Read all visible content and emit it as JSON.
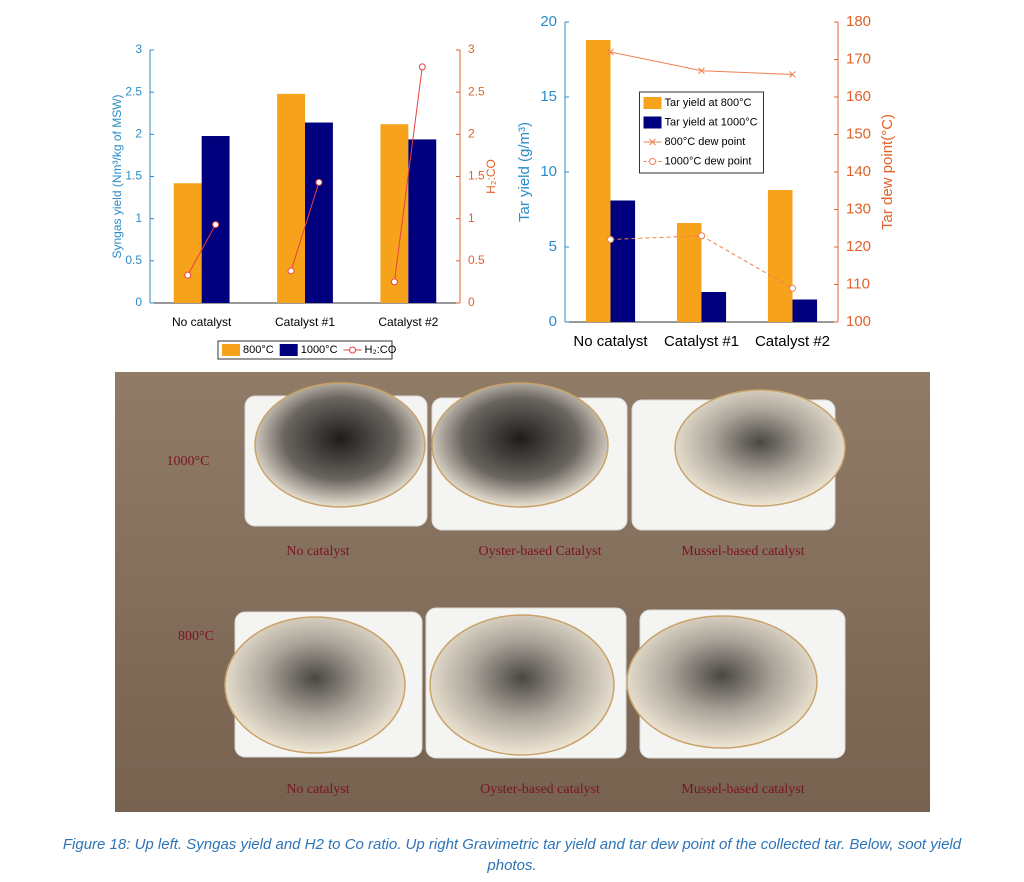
{
  "chart_data": [
    {
      "type": "bar",
      "ylabel": "Syngas yield (Nm³/kg of MSW)",
      "y2label": "H₂:CO",
      "categories": [
        "No catalyst",
        "Catalyst #1",
        "Catalyst #2"
      ],
      "series": [
        {
          "name": "800°C",
          "color": "#f7a21b",
          "values": [
            1.42,
            2.48,
            2.12
          ]
        },
        {
          "name": "1000°C",
          "color": "#00007f",
          "values": [
            1.98,
            2.14,
            1.94
          ]
        },
        {
          "name": "H₂:CO",
          "color": "#e8413c",
          "axis": "y2",
          "type": "line",
          "marker": "o",
          "linestyle": "solid",
          "values": [
            [
              0.33,
              0.93
            ],
            [
              0.38,
              1.43
            ],
            [
              0.25,
              2.8
            ]
          ]
        }
      ],
      "ylim": [
        0,
        3
      ],
      "yticks": [
        0,
        0.5,
        1,
        1.5,
        2,
        2.5,
        3
      ],
      "y_color": "#2a8cc8",
      "y2lim": [
        0,
        3
      ],
      "y2ticks": [
        0,
        0.5,
        1,
        1.5,
        2,
        2.5,
        3
      ],
      "y2_color": "#e0622a",
      "legend": "bottom"
    },
    {
      "type": "bar",
      "ylabel": "Tar yield (g/m³)",
      "y2label": "Tar dew point(°C)",
      "categories": [
        "No catalyst",
        "Catalyst #1",
        "Catalyst #2"
      ],
      "series": [
        {
          "name": "Tar yield at 800°C",
          "color": "#f7a21b",
          "values": [
            18.8,
            6.6,
            8.8
          ]
        },
        {
          "name": "Tar yield at 1000°C",
          "color": "#00007f",
          "values": [
            8.1,
            2.0,
            1.5
          ]
        },
        {
          "name": "800°C dew point",
          "color": "#f08050",
          "axis": "y2",
          "type": "line",
          "marker": "x",
          "linestyle": "solid",
          "values": [
            172,
            167,
            166
          ]
        },
        {
          "name": "1000°C dew point",
          "color": "#f08050",
          "axis": "y2",
          "type": "line",
          "marker": "o",
          "linestyle": "dashed",
          "values": [
            122,
            123,
            109
          ]
        }
      ],
      "ylim": [
        0,
        20
      ],
      "yticks": [
        0,
        5,
        10,
        15,
        20
      ],
      "y_color": "#2a8cc8",
      "y2lim": [
        100,
        180
      ],
      "y2ticks": [
        100,
        110,
        120,
        130,
        140,
        150,
        160,
        170,
        180
      ],
      "y2_color": "#e0622a",
      "legend": "upper center"
    }
  ],
  "photo": {
    "rows": [
      "1000°C",
      "800°C"
    ],
    "labels": [
      [
        "No catalyst",
        "Oyster-based Catalyst",
        "Mussel-based catalyst"
      ],
      [
        "No catalyst",
        "Oyster-based catalyst",
        "Mussel-based catalyst"
      ]
    ]
  },
  "caption": "Figure 18: Up left. Syngas yield and H2 to Co ratio. Up right Gravimetric tar yield and tar dew point of the collected tar. Below, soot yield photos."
}
